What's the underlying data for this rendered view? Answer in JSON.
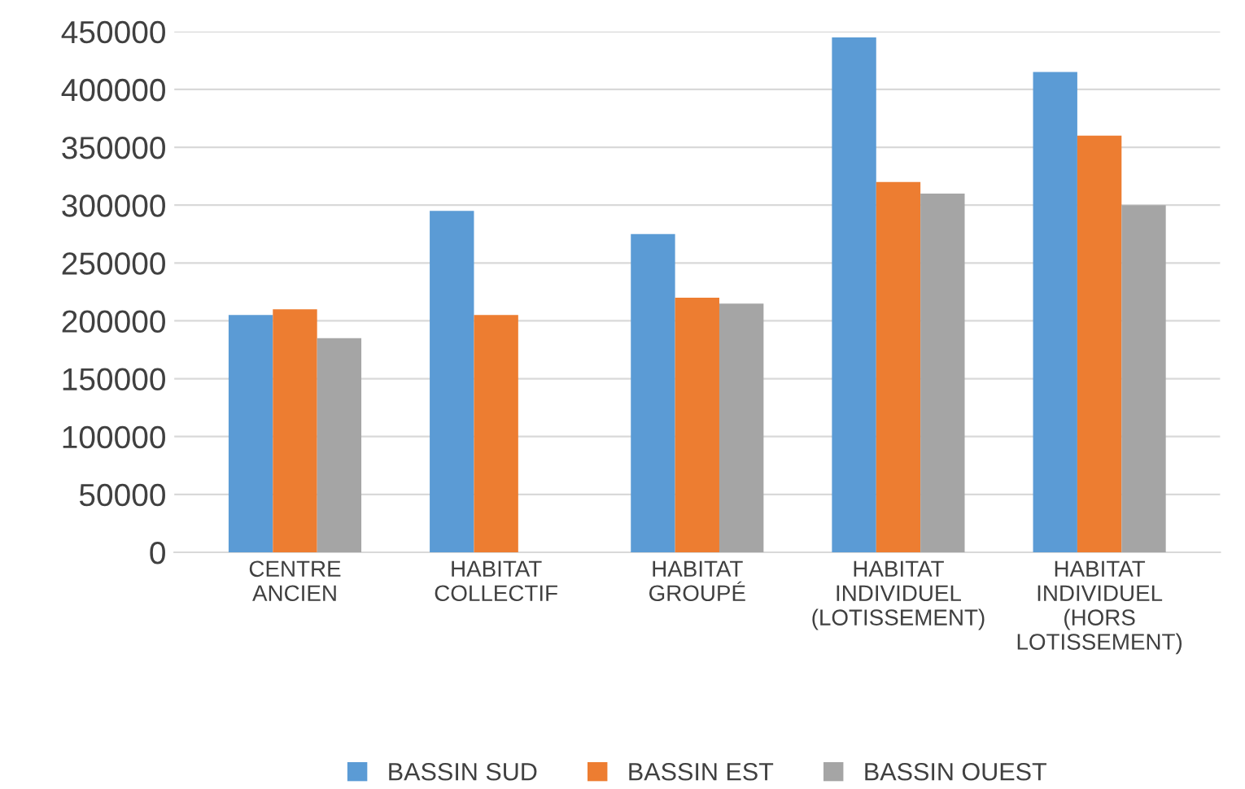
{
  "chart_data": {
    "type": "bar",
    "categories": [
      "CENTRE\nANCIEN",
      "HABITAT\nCOLLECTIF",
      "HABITAT\nGROUPÉ",
      "HABITAT\nINDIVIDUEL\n(LOTISSEMENT)",
      "HABITAT\nINDIVIDUEL\n(HORS\nLOTISSEMENT)"
    ],
    "series": [
      {
        "name": "BASSIN SUD",
        "color": "#5b9bd5",
        "values": [
          205000,
          295000,
          275000,
          445000,
          415000
        ]
      },
      {
        "name": "BASSIN EST",
        "color": "#ed7d31",
        "values": [
          210000,
          205000,
          220000,
          320000,
          360000
        ]
      },
      {
        "name": "BASSIN OUEST",
        "color": "#a5a5a5",
        "values": [
          185000,
          null,
          215000,
          310000,
          300000
        ]
      }
    ],
    "ylim": [
      0,
      450000
    ],
    "yticks": [
      0,
      50000,
      100000,
      150000,
      200000,
      250000,
      300000,
      350000,
      400000,
      450000
    ],
    "grid": "y",
    "legend": "bottom"
  }
}
